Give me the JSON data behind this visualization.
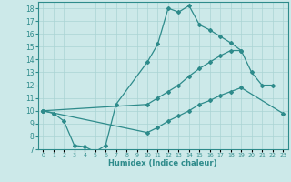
{
  "xlabel": "Humidex (Indice chaleur)",
  "xlim": [
    -0.5,
    23.5
  ],
  "ylim": [
    7,
    18.5
  ],
  "xtick_labels": [
    "0",
    "1",
    "2",
    "3",
    "4",
    "5",
    "6",
    "7",
    "8",
    "9",
    "10",
    "11",
    "12",
    "13",
    "14",
    "15",
    "16",
    "17",
    "18",
    "19",
    "20",
    "21",
    "22",
    "23"
  ],
  "xticks": [
    0,
    1,
    2,
    3,
    4,
    5,
    6,
    7,
    8,
    9,
    10,
    11,
    12,
    13,
    14,
    15,
    16,
    17,
    18,
    19,
    20,
    21,
    22,
    23
  ],
  "yticks": [
    7,
    8,
    9,
    10,
    11,
    12,
    13,
    14,
    15,
    16,
    17,
    18
  ],
  "background_color": "#cce9e9",
  "grid_color": "#aad4d4",
  "line_color": "#2e8b8b",
  "lines": [
    {
      "x": [
        0,
        1,
        2,
        3,
        4,
        5,
        6,
        7,
        10,
        11,
        12,
        13,
        14,
        15,
        16,
        17,
        18,
        19,
        20,
        21,
        22
      ],
      "y": [
        10,
        9.8,
        9.2,
        7.3,
        7.2,
        6.8,
        7.3,
        10.5,
        13.8,
        15.2,
        18.0,
        17.7,
        18.2,
        16.7,
        16.3,
        15.8,
        15.3,
        14.7,
        null,
        null,
        null
      ]
    },
    {
      "x": [
        0,
        10,
        11,
        12,
        13,
        14,
        15,
        16,
        17,
        18,
        19,
        20,
        21,
        22
      ],
      "y": [
        10,
        10.5,
        11.0,
        11.5,
        12.0,
        12.7,
        13.3,
        13.8,
        14.3,
        14.7,
        14.7,
        13.0,
        12.0,
        12.0
      ]
    },
    {
      "x": [
        0,
        10,
        11,
        12,
        13,
        14,
        15,
        16,
        17,
        18,
        19,
        23
      ],
      "y": [
        10,
        8.3,
        8.7,
        9.2,
        9.6,
        10.0,
        10.5,
        10.8,
        11.2,
        11.5,
        11.8,
        9.8
      ]
    }
  ]
}
